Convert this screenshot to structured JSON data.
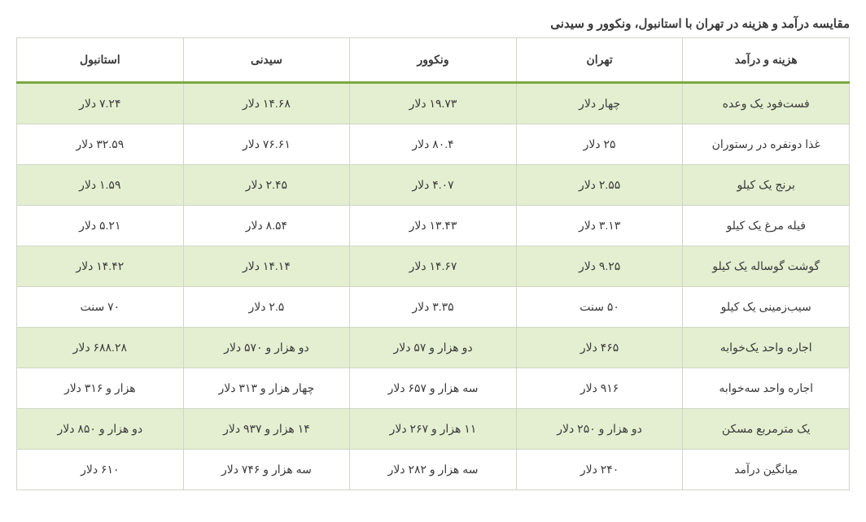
{
  "title": "مقایسه درآمد و هزینه در تهران با استانبول، ونکوور و سیدنی",
  "columns": [
    "هزینه و درآمد",
    "تهران",
    "ونکوور",
    "سیدنی",
    "استانبول"
  ],
  "rows": [
    [
      "فست‌فود یک وعده",
      "چهار دلار",
      "۱۹.۷۳ دلار",
      "۱۴.۶۸ دلار",
      "۷.۲۴ دلار"
    ],
    [
      "غذا دونفره در رستوران",
      "۲۵ دلار",
      "۸۰.۴ دلار",
      "۷۶.۶۱ دلار",
      "۳۲.۵۹ دلار"
    ],
    [
      "برنج یک کیلو",
      "۲.۵۵ دلار",
      "۴.۰۷ دلار",
      "۲.۴۵ دلار",
      "۱.۵۹ دلار"
    ],
    [
      "فیله مرغ یک کیلو",
      "۳.۱۳ دلار",
      "۱۳.۴۳ دلار",
      "۸.۵۴ دلار",
      "۵.۲۱ دلار"
    ],
    [
      "گوشت گوساله یک کیلو",
      "۹.۲۵ دلار",
      "۱۴.۶۷ دلار",
      "۱۴.۱۴ دلار",
      "۱۴.۴۲ دلار"
    ],
    [
      "سیب‌زمینی یک کیلو",
      "۵۰ سنت",
      "۳.۳۵ دلار",
      "۲.۵ دلار",
      "۷۰ سنت"
    ],
    [
      "اجاره واحد یک‌خوابه",
      "۴۶۵ دلار",
      "دو هزار و ۵۷ دلار",
      "دو هزار و ۵۷۰ دلار",
      "۶۸۸.۲۸ دلار"
    ],
    [
      "اجاره واحد سه‌خوابه",
      "۹۱۶ دلار",
      "سه هزار و ۶۵۷ دلار",
      "چهار هزار و ۳۱۳ دلار",
      "هزار و ۳۱۶ دلار"
    ],
    [
      "یک مترمربع مسکن",
      "دو هزار و ۲۵۰ دلار",
      "۱۱ هزار و ۲۶۷ دلار",
      "۱۴ هزار و ۹۳۷ دلار",
      "دو هزار و ۸۵۰ دلار"
    ],
    [
      "میانگین درآمد",
      "۲۴۰ دلار",
      "سه هزار و ۲۸۲ دلار",
      "سه هزار و ۷۴۶ دلار",
      "۶۱۰ دلار"
    ]
  ],
  "styling": {
    "header_border_bottom_color": "#7aa83f",
    "row_odd_bg": "#e3efd0",
    "row_even_bg": "#ffffff",
    "border_color": "#cfd6c6",
    "text_color": "#3a3a3a",
    "font_family": "Tahoma",
    "title_fontsize": 15,
    "cell_fontsize": 14
  }
}
